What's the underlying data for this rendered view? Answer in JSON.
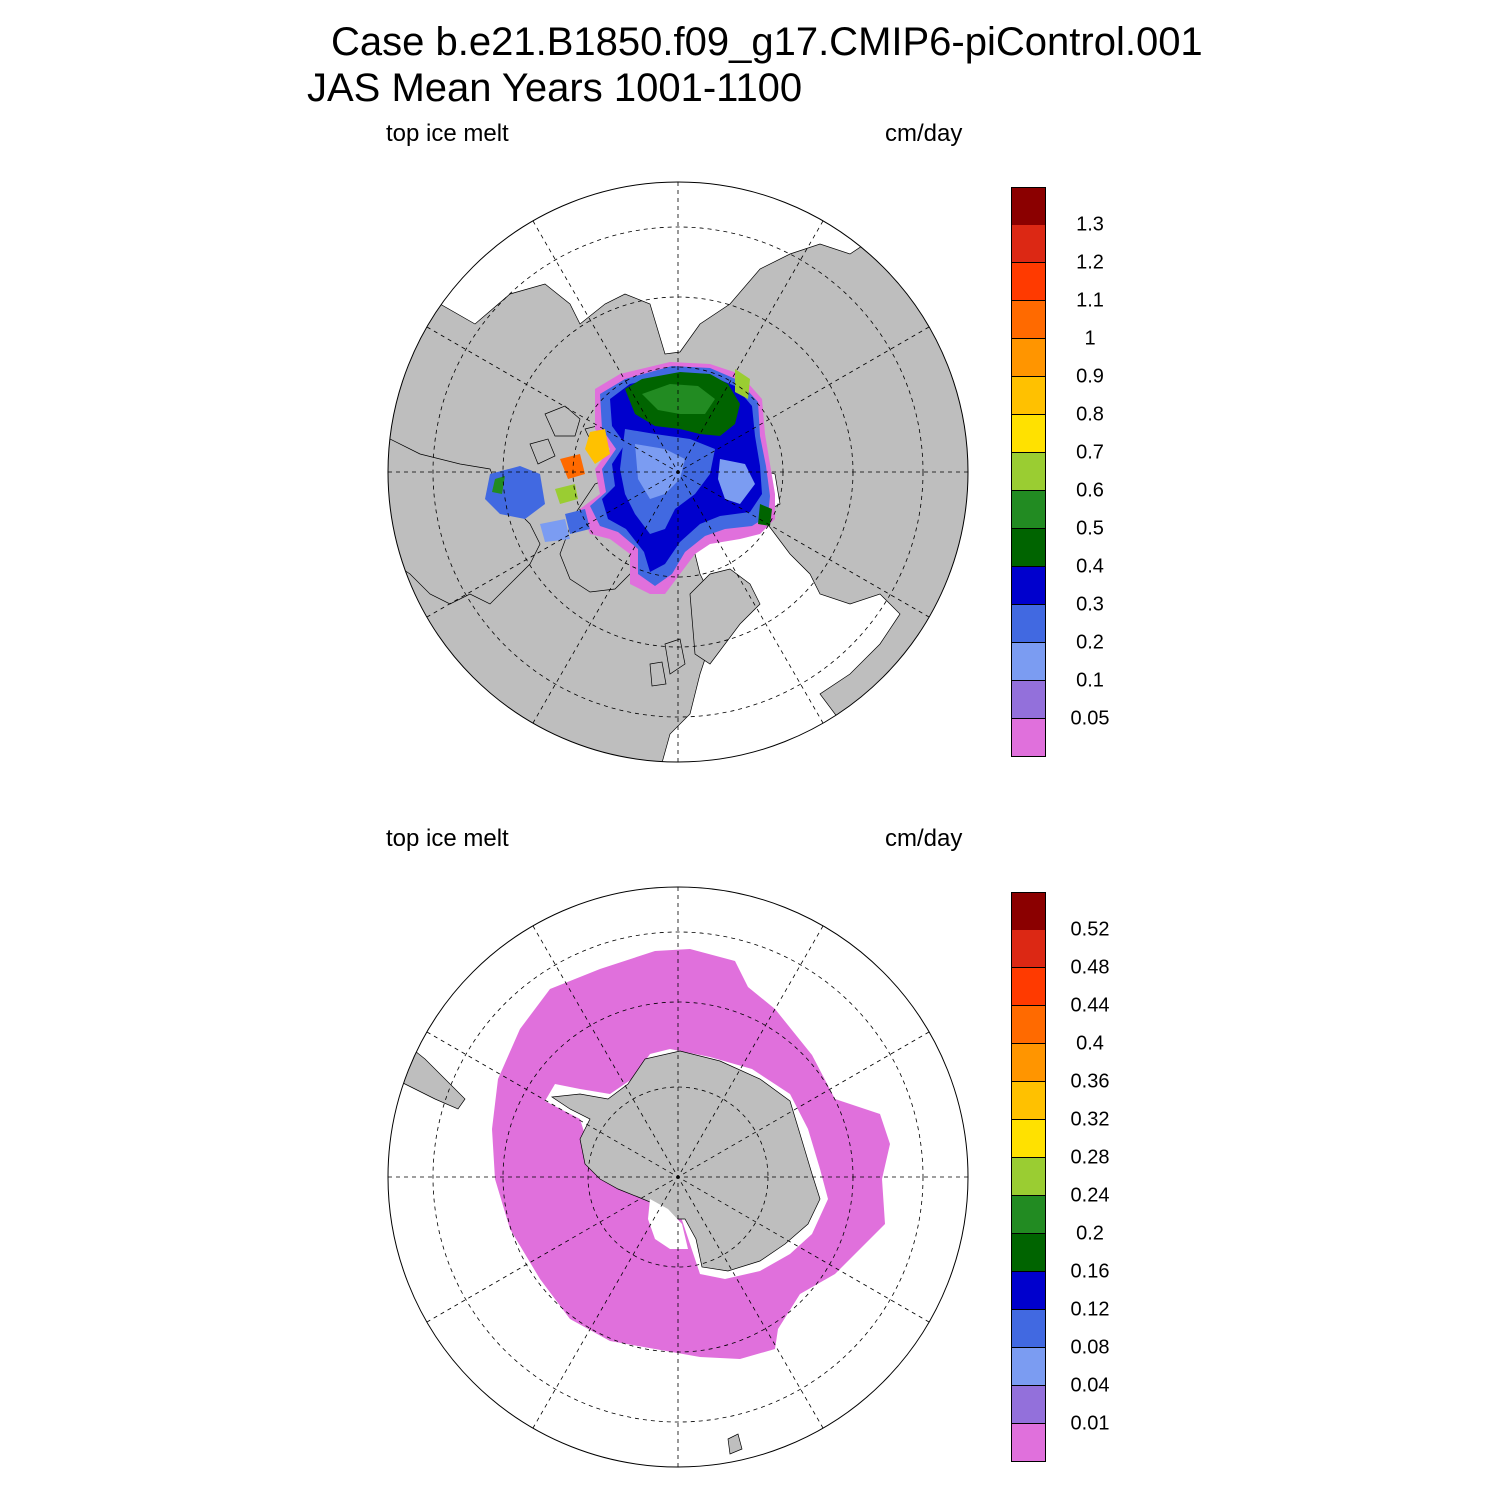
{
  "title_line1": "Case b.e21.B1850.f09_g17.CMIP6-piControl.001",
  "title_line2": "JAS Mean   Years 1001-1100",
  "panels": [
    {
      "hemisphere": "north",
      "left_label": "top ice melt",
      "right_label": "cm/day",
      "levels": [
        "0.05",
        "0.1",
        "0.2",
        "0.3",
        "0.4",
        "0.5",
        "0.6",
        "0.7",
        "0.8",
        "0.9",
        "1",
        "1.1",
        "1.2",
        "1.3"
      ]
    },
    {
      "hemisphere": "south",
      "left_label": "top ice melt",
      "right_label": "cm/day",
      "levels": [
        "0.01",
        "0.04",
        "0.08",
        "0.12",
        "0.16",
        "0.2",
        "0.24",
        "0.28",
        "0.32",
        "0.36",
        "0.4",
        "0.44",
        "0.48",
        "0.52"
      ]
    }
  ],
  "colors": {
    "land": "#bebebe",
    "ocean": "#ffffff",
    "palette": [
      "#e070dc",
      "#9370db",
      "#7b9cf2",
      "#4169e1",
      "#0000cd",
      "#006400",
      "#228b22",
      "#9acd32",
      "#ffe100",
      "#ffc100",
      "#ff9500",
      "#ff6a00",
      "#ff3a00",
      "#dc2814",
      "#8b0000"
    ]
  }
}
